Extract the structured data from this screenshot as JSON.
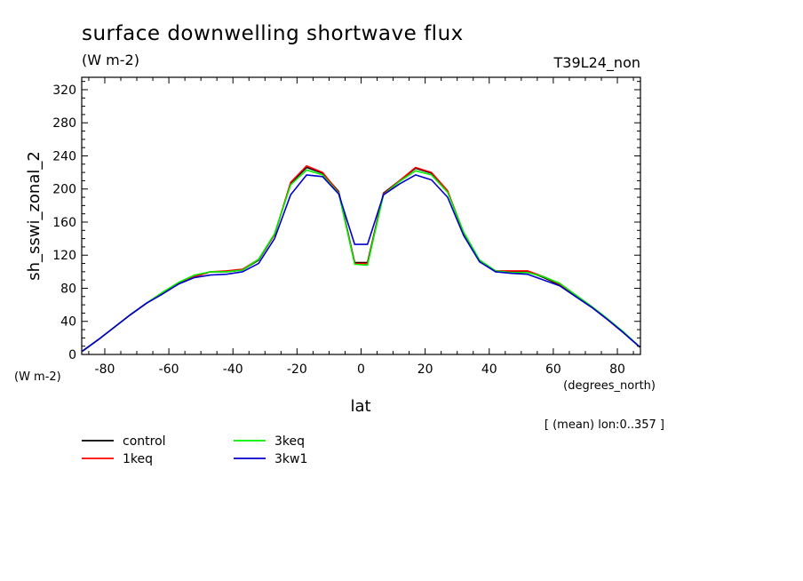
{
  "chart_data": {
    "type": "line",
    "title": "surface downwelling shortwave flux",
    "units": "(W m-2)",
    "run_label": "T39L24_non",
    "xlabel": "lat",
    "x_units": "(degrees_north)",
    "ylabel": "sh_sswi_zonal_2",
    "y_units": "(W m-2)",
    "note": "[ (mean) lon:0..357 ]",
    "xlim": [
      -87.2,
      87.2
    ],
    "ylim": [
      0,
      335
    ],
    "x_ticks": [
      -80,
      -60,
      -40,
      -20,
      0,
      20,
      40,
      60,
      80
    ],
    "x_tick_labels": [
      "-80",
      "-60",
      "-40",
      "-20",
      "0",
      "20",
      "40",
      "60",
      "80"
    ],
    "y_ticks": [
      0,
      40,
      80,
      120,
      160,
      200,
      240,
      280,
      320
    ],
    "y_tick_labels": [
      "0",
      "40",
      "80",
      "120",
      "160",
      "200",
      "240",
      "280",
      "320"
    ],
    "grid": false,
    "legend_position": "bottom-left",
    "x": [
      -87,
      -82,
      -77,
      -72,
      -67,
      -62,
      -57,
      -52,
      -47,
      -42,
      -37,
      -32,
      -27,
      -22,
      -17,
      -12,
      -7,
      -2,
      2,
      7,
      12,
      17,
      22,
      27,
      32,
      37,
      42,
      47,
      52,
      57,
      62,
      67,
      72,
      77,
      82,
      87
    ],
    "series": [
      {
        "name": "control",
        "color": "#000000",
        "values": [
          4,
          18,
          33,
          48,
          62,
          74,
          86,
          94,
          100,
          100,
          102,
          114,
          145,
          207,
          226,
          219,
          197,
          111,
          111,
          195,
          210,
          225,
          219,
          197,
          147,
          113,
          100,
          100,
          100,
          93,
          84,
          70,
          57,
          42,
          26,
          9
        ]
      },
      {
        "name": "1keq",
        "color": "#ff0000",
        "values": [
          4,
          18,
          33,
          48,
          62,
          74,
          86,
          94,
          100,
          101,
          103,
          115,
          145,
          208,
          228,
          220,
          196,
          110,
          110,
          194,
          210,
          226,
          220,
          198,
          147,
          113,
          101,
          101,
          101,
          94,
          85,
          71,
          57,
          42,
          26,
          9
        ]
      },
      {
        "name": "3keq",
        "color": "#00ee00",
        "values": [
          4,
          18,
          33,
          48,
          62,
          75,
          87,
          96,
          100,
          100,
          102,
          115,
          146,
          205,
          223,
          217,
          195,
          109,
          108,
          193,
          209,
          222,
          217,
          196,
          148,
          114,
          101,
          99,
          99,
          94,
          86,
          72,
          58,
          43,
          27,
          9
        ]
      },
      {
        "name": "3kw1",
        "color": "#0000cc",
        "values": [
          4,
          18,
          33,
          48,
          62,
          73,
          85,
          93,
          96,
          97,
          100,
          110,
          140,
          193,
          217,
          215,
          194,
          133,
          133,
          193,
          206,
          217,
          211,
          190,
          144,
          112,
          100,
          98,
          97,
          90,
          83,
          70,
          57,
          42,
          26,
          9
        ]
      }
    ]
  }
}
